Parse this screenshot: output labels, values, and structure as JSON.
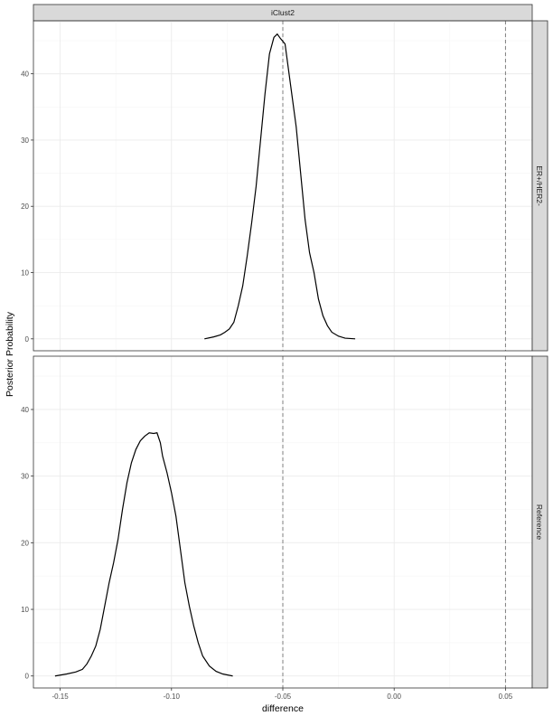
{
  "colors": {
    "background": "#ffffff",
    "panel_border": "#333333",
    "strip_fill": "#d9d9d9",
    "grid_major": "#ebebeb",
    "grid_minor": "#f5f5f5",
    "curve": "#000000",
    "reference_line": "#7f7f7f"
  },
  "chart_data": {
    "type": "line",
    "subtype": "faceted density",
    "column_strip": "iClust2",
    "xlabel": "difference",
    "ylabel": "Posterior Probability",
    "xlim": [
      -0.162,
      0.062
    ],
    "ylim": [
      -1.8,
      48
    ],
    "x_ticks": [
      -0.15,
      -0.1,
      -0.05,
      0.0,
      0.05
    ],
    "x_tick_labels": [
      "-0.15",
      "-0.10",
      "-0.05",
      "0.00",
      "0.05"
    ],
    "y_ticks": [
      0,
      10,
      20,
      30,
      40
    ],
    "y_tick_labels": [
      "0",
      "10",
      "20",
      "30",
      "40"
    ],
    "reference_lines_x": [
      -0.05,
      0.05
    ],
    "grid": true,
    "panels": [
      {
        "row_strip": "ER+/HER2-",
        "series": [
          {
            "x": [
              -0.0852,
              -0.081,
              -0.078,
              -0.076,
              -0.074,
              -0.072,
              -0.07,
              -0.068,
              -0.066,
              -0.064,
              -0.062,
              -0.06,
              -0.058,
              -0.056,
              -0.054,
              -0.0525,
              -0.051,
              -0.049,
              -0.048,
              -0.046,
              -0.044,
              -0.042,
              -0.04,
              -0.038,
              -0.036,
              -0.034,
              -0.032,
              -0.03,
              -0.028,
              -0.025,
              -0.022,
              -0.0175
            ],
            "y": [
              0,
              0.3,
              0.6,
              1.0,
              1.5,
              2.5,
              5,
              8,
              12.5,
              17.5,
              23,
              30,
              37,
              43,
              45.5,
              46,
              45.3,
              44.5,
              42,
              37,
              32,
              25,
              18,
              13,
              10,
              6,
              3.5,
              2,
              1,
              0.4,
              0.1,
              0
            ]
          }
        ]
      },
      {
        "row_strip": "Reference",
        "series": [
          {
            "x": [
              -0.1523,
              -0.147,
              -0.143,
              -0.14,
              -0.138,
              -0.136,
              -0.134,
              -0.132,
              -0.13,
              -0.128,
              -0.126,
              -0.124,
              -0.122,
              -0.12,
              -0.118,
              -0.116,
              -0.114,
              -0.112,
              -0.11,
              -0.108,
              -0.1065,
              -0.105,
              -0.104,
              -0.102,
              -0.1,
              -0.098,
              -0.096,
              -0.094,
              -0.092,
              -0.09,
              -0.088,
              -0.086,
              -0.083,
              -0.08,
              -0.077,
              -0.0725
            ],
            "y": [
              0,
              0.3,
              0.6,
              1,
              1.8,
              3,
              4.5,
              7,
              10.5,
              14,
              17,
              20.5,
              25,
              29,
              32,
              34,
              35.3,
              36,
              36.5,
              36.4,
              36.5,
              35,
              33,
              30.5,
              27.5,
              24,
              19,
              14,
              10.5,
              7.5,
              5,
              3,
              1.5,
              0.7,
              0.3,
              0
            ]
          }
        ]
      }
    ]
  }
}
